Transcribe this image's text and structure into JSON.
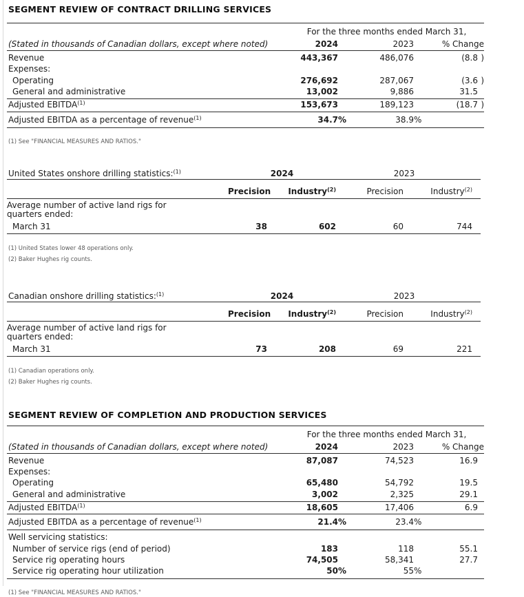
{
  "theme": {
    "rule_color": "#2d2d2d",
    "text_color": "#1b1b1b",
    "footnote_color": "#5a5a5a",
    "left_border_color": "#d8d8d8"
  },
  "drilling": {
    "title": "SEGMENT REVIEW OF CONTRACT DRILLING SERVICES",
    "period_header": "For the three months ended March 31,",
    "stub_note": "(Stated in thousands of Canadian dollars, except where noted)",
    "col_2024": "2024",
    "col_2023": "2023",
    "col_change": "% Change",
    "rows": [
      {
        "label": "Revenue",
        "v24": "443,367",
        "v23": "486,076",
        "vc": "(8.8",
        "sc": ")"
      },
      {
        "label": "Expenses:"
      },
      {
        "label": "Operating",
        "v24": "276,692",
        "v23": "287,067",
        "vc": "(3.6",
        "sc": ")"
      },
      {
        "label": "General and administrative",
        "v24": "13,002",
        "v23": "9,886",
        "vc": "31.5"
      }
    ],
    "ebitda": {
      "label": "Adjusted EBITDA",
      "sup": "(1)",
      "v24": "153,673",
      "v23": "189,123",
      "vc": "(18.7",
      "sc": ")"
    },
    "pct": {
      "label": "Adjusted EBITDA as a percentage of revenue",
      "sup": "(1)",
      "v24": "34.7",
      "s24": "%",
      "v23": "38.9",
      "s23": "%"
    },
    "footnote": "(1) See \"FINANCIAL MEASURES AND RATIOS.\""
  },
  "us_stats": {
    "title": "United States onshore drilling statistics:",
    "title_sup": "(1)",
    "col_2024": "2024",
    "col_2023": "2023",
    "precision_2024": "Precision",
    "industry_2024": "Industry",
    "industry_2024_sup": "(2)",
    "precision_2023": "Precision",
    "industry_2023": "Industry",
    "industry_2023_sup": "(2)",
    "row_label_line1": "Average number of active land rigs for",
    "row_label_line2": "quarters ended:",
    "data_row": {
      "label": "March 31",
      "precision_2024": "38",
      "industry_2024": "602",
      "precision_2023": "60",
      "industry_2023": "744"
    },
    "footnote_1": "(1) United States lower 48 operations only.",
    "footnote_2": "(2) Baker Hughes rig counts."
  },
  "canada_stats": {
    "title": "Canadian onshore drilling statistics:",
    "title_sup": "(1)",
    "col_2024": "2024",
    "col_2023": "2023",
    "precision_2024": "Precision",
    "industry_2024": "Industry",
    "industry_2024_sup": "(2)",
    "precision_2023": "Precision",
    "industry_2023": "Industry",
    "industry_2023_sup": "(2)",
    "row_label_line1": "Average number of active land rigs for",
    "row_label_line2": "quarters ended:",
    "data_row": {
      "label": "March 31",
      "precision_2024": "73",
      "industry_2024": "208",
      "precision_2023": "69",
      "industry_2023": "221"
    },
    "footnote_1": "(1) Canadian operations only.",
    "footnote_2": "(2) Baker Hughes rig counts."
  },
  "completion": {
    "title": "SEGMENT REVIEW OF COMPLETION AND PRODUCTION SERVICES",
    "period_header": "For the three months ended March 31,",
    "stub_note": "(Stated in thousands of Canadian dollars, except where noted)",
    "col_2024": "2024",
    "col_2023": "2023",
    "col_change": "% Change",
    "rows": [
      {
        "label": "Revenue",
        "v24": "87,087",
        "v23": "74,523",
        "vc": "16.9"
      },
      {
        "label": "Expenses:"
      },
      {
        "label": "Operating",
        "v24": "65,480",
        "v23": "54,792",
        "vc": "19.5"
      },
      {
        "label": "General and administrative",
        "v24": "3,002",
        "v23": "2,325",
        "vc": "29.1"
      }
    ],
    "ebitda": {
      "label": "Adjusted EBITDA",
      "sup": "(1)",
      "v24": "18,605",
      "v23": "17,406",
      "vc": "6.9"
    },
    "pct": {
      "label": "Adjusted EBITDA as a percentage of revenue",
      "sup": "(1)",
      "v24": "21.4",
      "s24": "%",
      "v23": "23.4",
      "s23": "%"
    },
    "well_header": "Well servicing statistics:",
    "well_rows": [
      {
        "label": "Number of service rigs (end of period)",
        "v24": "183",
        "v23": "118",
        "vc": "55.1"
      },
      {
        "label": "Service rig operating hours",
        "v24": "74,505",
        "v23": "58,341",
        "vc": "27.7"
      },
      {
        "label": "Service rig operating hour utilization",
        "v24": "50",
        "s24": "%",
        "v23": "55",
        "s23": "%"
      }
    ],
    "footnote": "(1) See \"FINANCIAL MEASURES AND RATIOS.\""
  }
}
